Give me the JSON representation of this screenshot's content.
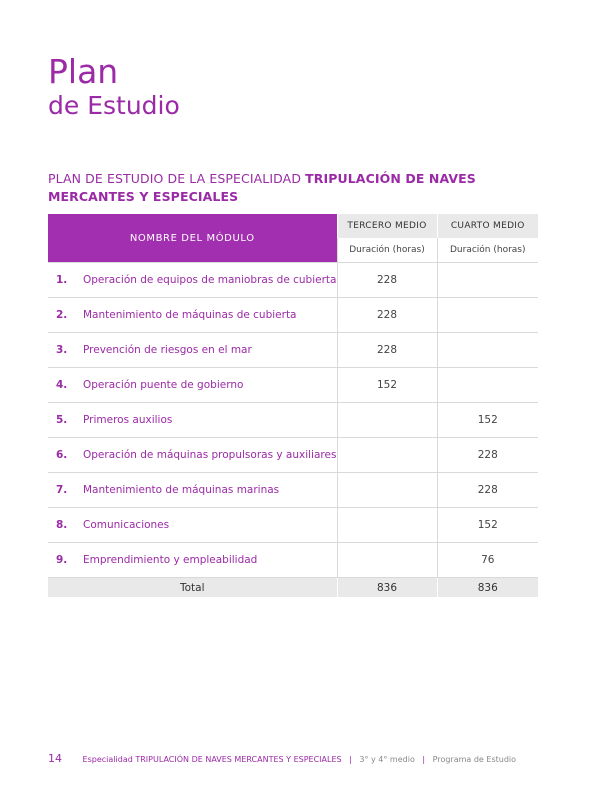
{
  "header": {
    "title": "Plan",
    "subtitle": "de Estudio"
  },
  "section": {
    "heading_prefix": "PLAN DE ESTUDIO DE LA ESPECIALIDAD",
    "heading_bold": "TRIPULACIÓN DE NAVES MERCANTES Y ESPECIALES"
  },
  "table": {
    "col_module": "NOMBRE DEL MÓDULO",
    "col_tercero": "TERCERO MEDIO",
    "col_cuarto": "CUARTO MEDIO",
    "duracion_tercero": "Duración (horas)",
    "duracion_cuarto": "Duración (horas)",
    "rows": [
      {
        "num": "1.",
        "name": "Operación de equipos de maniobras de cubierta",
        "tercero": "228",
        "cuarto": ""
      },
      {
        "num": "2.",
        "name": "Mantenimiento de máquinas de cubierta",
        "tercero": "228",
        "cuarto": ""
      },
      {
        "num": "3.",
        "name": "Prevención de riesgos en el mar",
        "tercero": "228",
        "cuarto": ""
      },
      {
        "num": "4.",
        "name": "Operación puente de gobierno",
        "tercero": "152",
        "cuarto": ""
      },
      {
        "num": "5.",
        "name": "Primeros auxilios",
        "tercero": "",
        "cuarto": "152"
      },
      {
        "num": "6.",
        "name": "Operación de máquinas propulsoras y auxiliares",
        "tercero": "",
        "cuarto": "228"
      },
      {
        "num": "7.",
        "name": "Mantenimiento de máquinas marinas",
        "tercero": "",
        "cuarto": "228"
      },
      {
        "num": "8.",
        "name": "Comunicaciones",
        "tercero": "",
        "cuarto": "152"
      },
      {
        "num": "9.",
        "name": "Emprendimiento y empleabilidad",
        "tercero": "",
        "cuarto": "76"
      }
    ],
    "total_label": "Total",
    "total_tercero": "836",
    "total_cuarto": "836"
  },
  "footer": {
    "page_number": "14",
    "especialidad_label": "Especialidad",
    "especialidad_name": "TRIPULACIÓN DE NAVES MERCANTES Y ESPECIALES",
    "separator": "|",
    "level": "3° y 4° medio",
    "program": "Programa de Estudio"
  },
  "colors": {
    "accent": "#9b2aa6",
    "header_fill": "#a12fb0",
    "gray_fill": "#e9e9e9"
  }
}
